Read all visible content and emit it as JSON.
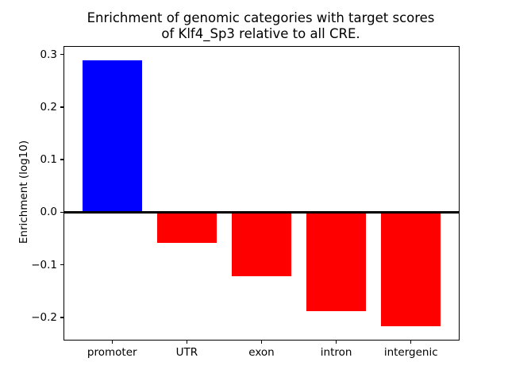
{
  "chart_data": {
    "type": "bar",
    "title": "Enrichment of genomic categories with target scores\nof Klf4_Sp3 relative to all CRE.",
    "xlabel": "",
    "ylabel": "Enrichment (log10)",
    "categories": [
      "promoter",
      "UTR",
      "exon",
      "intron",
      "intergenic"
    ],
    "values": [
      0.289,
      -0.058,
      -0.121,
      -0.188,
      -0.217
    ],
    "bar_colors": [
      "#0000ff",
      "#ff0000",
      "#ff0000",
      "#ff0000",
      "#ff0000"
    ],
    "positive_color": "#0000ff",
    "negative_color": "#ff0000",
    "bar_width": 0.8,
    "ylim": [
      -0.2425,
      0.3145
    ],
    "xlim": [
      -0.64,
      4.64
    ],
    "yticks": [
      0.3,
      0.2,
      0.1,
      0.0,
      -0.1,
      -0.2
    ],
    "ytick_labels": [
      "0.3",
      "0.2",
      "0.1",
      "0.0",
      "−0.1",
      "−0.2"
    ],
    "zero_line": true,
    "grid": false,
    "legend_position": "none",
    "axis_color": "#000000",
    "text_color": "#000000",
    "background": "#ffffff"
  }
}
